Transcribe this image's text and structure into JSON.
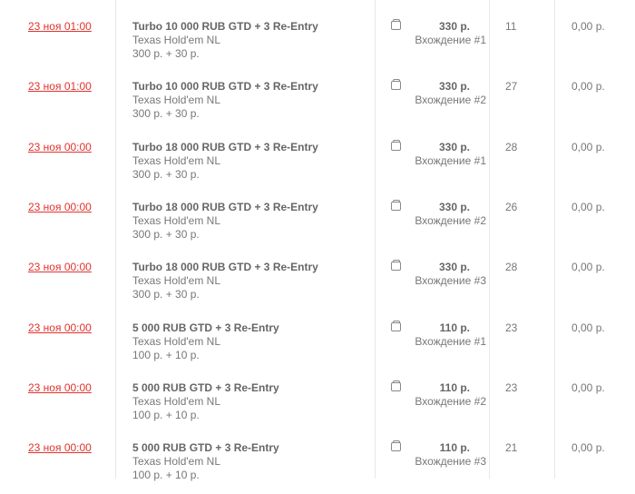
{
  "rows": [
    {
      "date": "23 ноя 01:00",
      "title": "Turbo 10 000 RUB GTD + 3 Re-Entry",
      "game": "Texas Hold'em NL",
      "buyin": "300 р. + 30 р.",
      "price": "330 р.",
      "entry": "Вхождение #1",
      "players": "11",
      "winnings": "0,00 р."
    },
    {
      "date": "23 ноя 01:00",
      "title": "Turbo 10 000 RUB GTD + 3 Re-Entry",
      "game": "Texas Hold'em NL",
      "buyin": "300 р. + 30 р.",
      "price": "330 р.",
      "entry": "Вхождение #2",
      "players": "27",
      "winnings": "0,00 р."
    },
    {
      "date": "23 ноя 00:00",
      "title": "Turbo 18 000 RUB GTD + 3 Re-Entry",
      "game": "Texas Hold'em NL",
      "buyin": "300 р. + 30 р.",
      "price": "330 р.",
      "entry": "Вхождение #1",
      "players": "28",
      "winnings": "0,00 р."
    },
    {
      "date": "23 ноя 00:00",
      "title": "Turbo 18 000 RUB GTD + 3 Re-Entry",
      "game": "Texas Hold'em NL",
      "buyin": "300 р. + 30 р.",
      "price": "330 р.",
      "entry": "Вхождение #2",
      "players": "26",
      "winnings": "0,00 р."
    },
    {
      "date": "23 ноя 00:00",
      "title": "Turbo 18 000 RUB GTD + 3 Re-Entry",
      "game": "Texas Hold'em NL",
      "buyin": "300 р. + 30 р.",
      "price": "330 р.",
      "entry": "Вхождение #3",
      "players": "28",
      "winnings": "0,00 р."
    },
    {
      "date": "23 ноя 00:00",
      "title": "5 000 RUB GTD + 3 Re-Entry",
      "game": "Texas Hold'em NL",
      "buyin": "100 р. + 10 р.",
      "price": "110 р.",
      "entry": "Вхождение #1",
      "players": "23",
      "winnings": "0,00 р."
    },
    {
      "date": "23 ноя 00:00",
      "title": "5 000 RUB GTD + 3 Re-Entry",
      "game": "Texas Hold'em NL",
      "buyin": "100 р. + 10 р.",
      "price": "110 р.",
      "entry": "Вхождение #2",
      "players": "23",
      "winnings": "0,00 р."
    },
    {
      "date": "23 ноя 00:00",
      "title": "5 000 RUB GTD + 3 Re-Entry",
      "game": "Texas Hold'em NL",
      "buyin": "100 р. + 10 р.",
      "price": "110 р.",
      "entry": "Вхождение #3",
      "players": "21",
      "winnings": "0,00 р."
    }
  ],
  "icons": {
    "entry": "wallet-icon"
  },
  "colors": {
    "date_link": "#e0332e"
  }
}
